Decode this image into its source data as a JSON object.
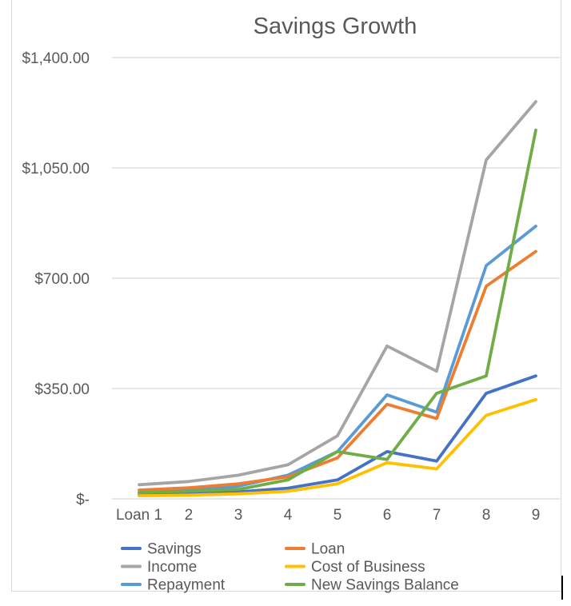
{
  "chart_data": {
    "type": "line",
    "title": "Savings Growth",
    "xlabel": "",
    "ylabel": "",
    "categories": [
      "Loan 1",
      "2",
      "3",
      "4",
      "5",
      "6",
      "7",
      "8",
      "9"
    ],
    "y_ticks": [
      0,
      350,
      700,
      1050,
      1400
    ],
    "y_tick_labels": [
      "$-",
      "$350.00",
      "$700.00",
      "$1,050.00",
      "$1,400.00"
    ],
    "ylim": [
      0,
      1400
    ],
    "grid": true,
    "legend_position": "bottom",
    "series": [
      {
        "name": "Savings",
        "color": "#4472c4",
        "values": [
          12,
          16,
          22,
          34,
          60,
          150,
          120,
          335,
          390
        ]
      },
      {
        "name": "Income",
        "color": "#a5a5a5",
        "values": [
          45,
          55,
          75,
          108,
          200,
          485,
          405,
          1075,
          1260
        ]
      },
      {
        "name": "Repayment",
        "color": "#5b9bd5",
        "values": [
          20,
          28,
          40,
          75,
          150,
          330,
          275,
          740,
          865
        ]
      },
      {
        "name": "Loan",
        "color": "#ed7d31",
        "values": [
          28,
          35,
          48,
          70,
          130,
          300,
          255,
          675,
          785
        ]
      },
      {
        "name": "Cost of Business",
        "color": "#ffc000",
        "values": [
          10,
          12,
          16,
          24,
          48,
          115,
          95,
          265,
          315
        ]
      },
      {
        "name": "New Savings Balance",
        "color": "#70ad47",
        "values": [
          20,
          24,
          30,
          60,
          150,
          125,
          335,
          390,
          1170
        ]
      }
    ]
  }
}
